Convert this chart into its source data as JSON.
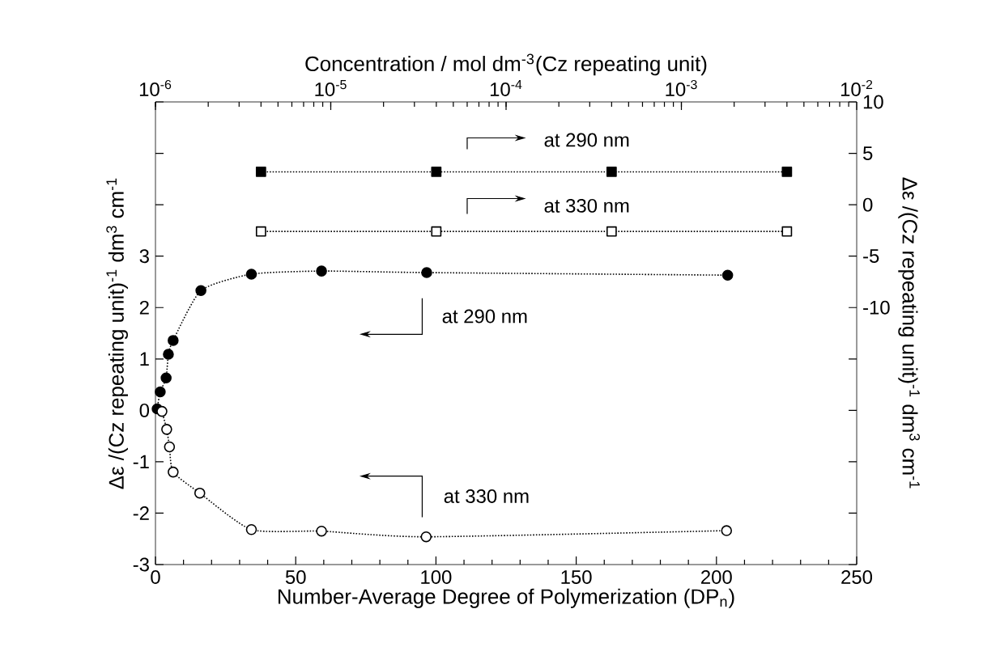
{
  "chart_data": [
    {
      "type": "line",
      "xlabel": "Number-Average Degree of Polymerization (DP$_{n}$)",
      "ylabel": "Δε /(Cz repeating unit)$^{-1}$ dm$^{3}$ cm$^{-1}$",
      "xlim": [
        0,
        250
      ],
      "xticks": [
        0,
        50,
        100,
        150,
        200,
        250
      ],
      "ylim": [
        -3,
        6
      ],
      "yticks": [
        -3,
        -2,
        -1,
        0,
        1,
        2,
        3,
        {
          "value": 4,
          "label": null
        },
        {
          "value": 5,
          "label": null
        },
        {
          "value": 6,
          "label": null
        }
      ],
      "line_style": "dotted",
      "marker": "circle",
      "series": [
        {
          "color": "#000000",
          "x": [
            0.6,
            1.7,
            3.8,
            4.6,
            6.3,
            16.2,
            34.2,
            59.2,
            96.7,
            204
          ],
          "values": [
            0.03,
            0.36,
            0.63,
            1.09,
            1.36,
            2.33,
            2.65,
            2.71,
            2.68,
            2.63
          ]
        },
        {
          "color": "#ffffff",
          "x": [
            2.3,
            4,
            5,
            6.3,
            15.8,
            34.2,
            59.2,
            96.5,
            203.6
          ],
          "values": [
            -0.02,
            -0.37,
            -0.71,
            -1.2,
            -1.61,
            -2.32,
            -2.35,
            -2.46,
            -2.34
          ]
        }
      ],
      "annotations": [
        "at 290 nm",
        "at 330 nm"
      ]
    },
    {
      "type": "line",
      "xlabel": "Concentration / mol dm$^{-3}$(Cz repeating unit)",
      "ylabel": "Δε /(Cz repeating unit)$^{-1}$ dm$^{3}$ cm$^{-1}$",
      "xlim": [
        1e-06,
        0.01
      ],
      "xticks": [
        {
          "value": 1e-06,
          "label": "10$^{-6}$"
        },
        {
          "value": 1e-05,
          "label": "10$^{-5}$"
        },
        {
          "value": 0.0001,
          "label": "10$^{-4}$"
        },
        {
          "value": 0.001,
          "label": "10$^{-3}$"
        },
        {
          "value": 0.01,
          "label": "10$^{-2}$"
        }
      ],
      "log": "x",
      "ylim": [
        -35,
        10
      ],
      "yticks": [
        {
          "value": -35,
          "label": null
        },
        {
          "value": -30,
          "label": null
        },
        {
          "value": -25,
          "label": null
        },
        {
          "value": -20,
          "label": null
        },
        {
          "value": -15,
          "label": null
        },
        -10,
        -5,
        0,
        5,
        10
      ],
      "line_style": "dotted",
      "marker": "square",
      "series": [
        {
          "color": "#000000",
          "x": [
            4e-06,
            4e-05,
            0.0004,
            0.004
          ],
          "values": [
            3.2,
            3.2,
            3.2,
            3.2
          ]
        },
        {
          "color": "#ffffff",
          "x": [
            4e-06,
            4e-05,
            0.0004,
            0.004
          ],
          "values": [
            -2.6,
            -2.6,
            -2.6,
            -2.6
          ]
        }
      ],
      "annotations": [
        "at 290 nm",
        "at 330 nm"
      ]
    }
  ]
}
